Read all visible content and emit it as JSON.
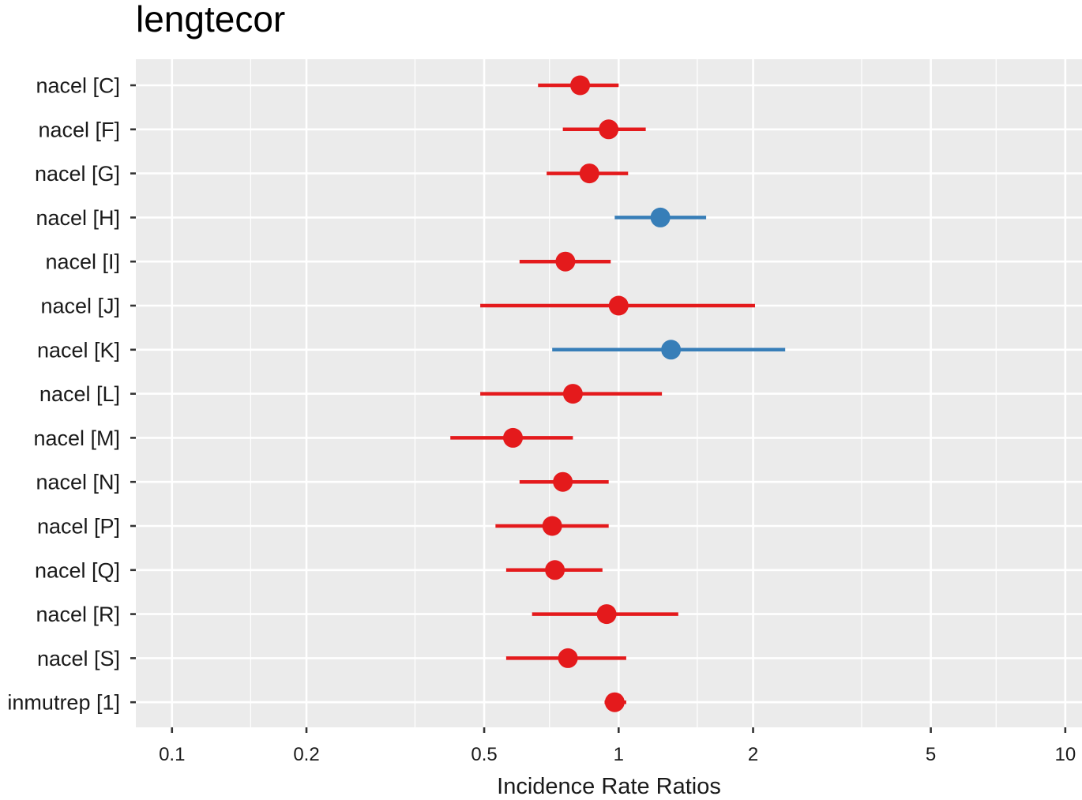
{
  "chart_data": {
    "type": "forest",
    "title": "lengtecor",
    "xlabel": "Incidence Rate Ratios",
    "ylabel": "",
    "x_scale": "log10",
    "xlim": [
      0.083,
      10.9
    ],
    "x_ticks": [
      0.1,
      0.2,
      0.5,
      1,
      2,
      5,
      10
    ],
    "x_tick_labels": [
      "0.1",
      "0.2",
      "0.5",
      "1",
      "2",
      "5",
      "10"
    ],
    "x_minor_ticks": [
      0.15,
      0.35,
      0.7,
      1.5,
      3.5,
      7
    ],
    "grid": true,
    "legend": "none",
    "colors": {
      "below_one": "#e41a1c",
      "above_one": "#377eb8",
      "panel": "#ebebeb",
      "grid": "#ffffff"
    },
    "rows": [
      {
        "label": "nacel [C]",
        "estimate": 0.82,
        "low": 0.66,
        "high": 1.0,
        "direction": "below_one"
      },
      {
        "label": "nacel [F]",
        "estimate": 0.95,
        "low": 0.75,
        "high": 1.15,
        "direction": "below_one"
      },
      {
        "label": "nacel [G]",
        "estimate": 0.86,
        "low": 0.69,
        "high": 1.05,
        "direction": "below_one"
      },
      {
        "label": "nacel [H]",
        "estimate": 1.24,
        "low": 0.98,
        "high": 1.57,
        "direction": "above_one"
      },
      {
        "label": "nacel [I]",
        "estimate": 0.76,
        "low": 0.6,
        "high": 0.96,
        "direction": "below_one"
      },
      {
        "label": "nacel [J]",
        "estimate": 1.0,
        "low": 0.49,
        "high": 2.02,
        "direction": "below_one"
      },
      {
        "label": "nacel [K]",
        "estimate": 1.31,
        "low": 0.71,
        "high": 2.36,
        "direction": "above_one"
      },
      {
        "label": "nacel [L]",
        "estimate": 0.79,
        "low": 0.49,
        "high": 1.25,
        "direction": "below_one"
      },
      {
        "label": "nacel [M]",
        "estimate": 0.58,
        "low": 0.42,
        "high": 0.79,
        "direction": "below_one"
      },
      {
        "label": "nacel [N]",
        "estimate": 0.75,
        "low": 0.6,
        "high": 0.95,
        "direction": "below_one"
      },
      {
        "label": "nacel [P]",
        "estimate": 0.71,
        "low": 0.53,
        "high": 0.95,
        "direction": "below_one"
      },
      {
        "label": "nacel [Q]",
        "estimate": 0.72,
        "low": 0.56,
        "high": 0.92,
        "direction": "below_one"
      },
      {
        "label": "nacel [R]",
        "estimate": 0.94,
        "low": 0.64,
        "high": 1.36,
        "direction": "below_one"
      },
      {
        "label": "nacel [S]",
        "estimate": 0.77,
        "low": 0.56,
        "high": 1.04,
        "direction": "below_one"
      },
      {
        "label": "inmutrep [1]",
        "estimate": 0.98,
        "low": 0.93,
        "high": 1.04,
        "direction": "below_one"
      }
    ]
  }
}
